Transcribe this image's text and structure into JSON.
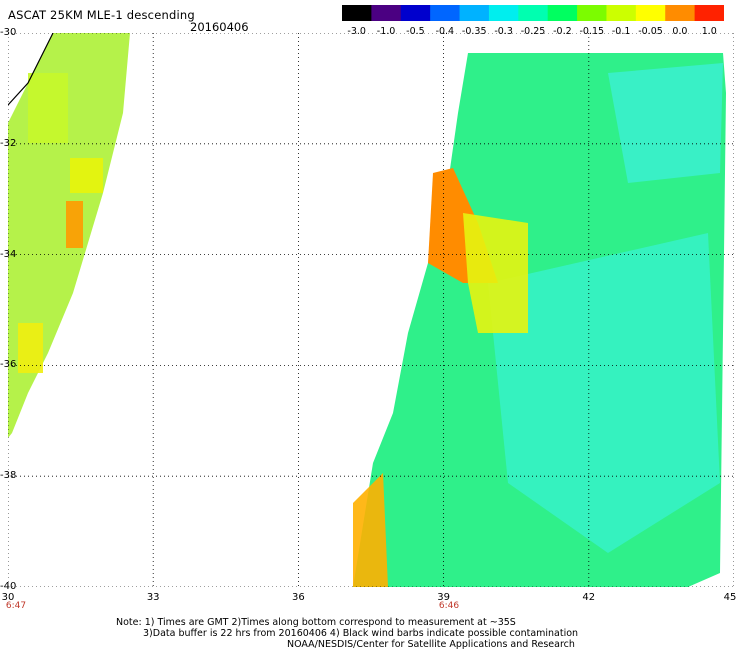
{
  "header": {
    "title": "ASCAT 25KM MLE-1 descending",
    "date": "20160406"
  },
  "colorbar": {
    "labels": [
      "-3.0",
      "-1.0",
      "-0.5",
      "-0.4",
      "-0.35",
      "-0.3",
      "-0.25",
      "-0.2",
      "-0.15",
      "-0.1",
      "-0.05",
      "0.0",
      "1.0"
    ],
    "colors": [
      "#000000",
      "#4b0082",
      "#0000cd",
      "#0066ff",
      "#00b2ff",
      "#00eeee",
      "#00ffb0",
      "#00ff60",
      "#7cfc00",
      "#ccff00",
      "#ffff00",
      "#ff8c00",
      "#ff2200"
    ]
  },
  "axes": {
    "lat_labels": [
      "-30",
      "-32",
      "-34",
      "-36",
      "-38",
      "-40"
    ],
    "lon_labels": [
      "30",
      "33",
      "36",
      "39",
      "42",
      "45"
    ],
    "lon_range": [
      30,
      45
    ],
    "lat_range": [
      -30,
      -40
    ]
  },
  "times": {
    "left": "6:47",
    "center": "6:46"
  },
  "notes": {
    "line1": "Note: 1) Times are GMT 2)Times along bottom correspond to measurement at ~35S",
    "line2": "3)Data buffer is 22 hrs from 20160406 4) Black wind barbs indicate possible contamination",
    "line3": "NOAA/NESDIS/Center for Satellite Applications and Research"
  }
}
